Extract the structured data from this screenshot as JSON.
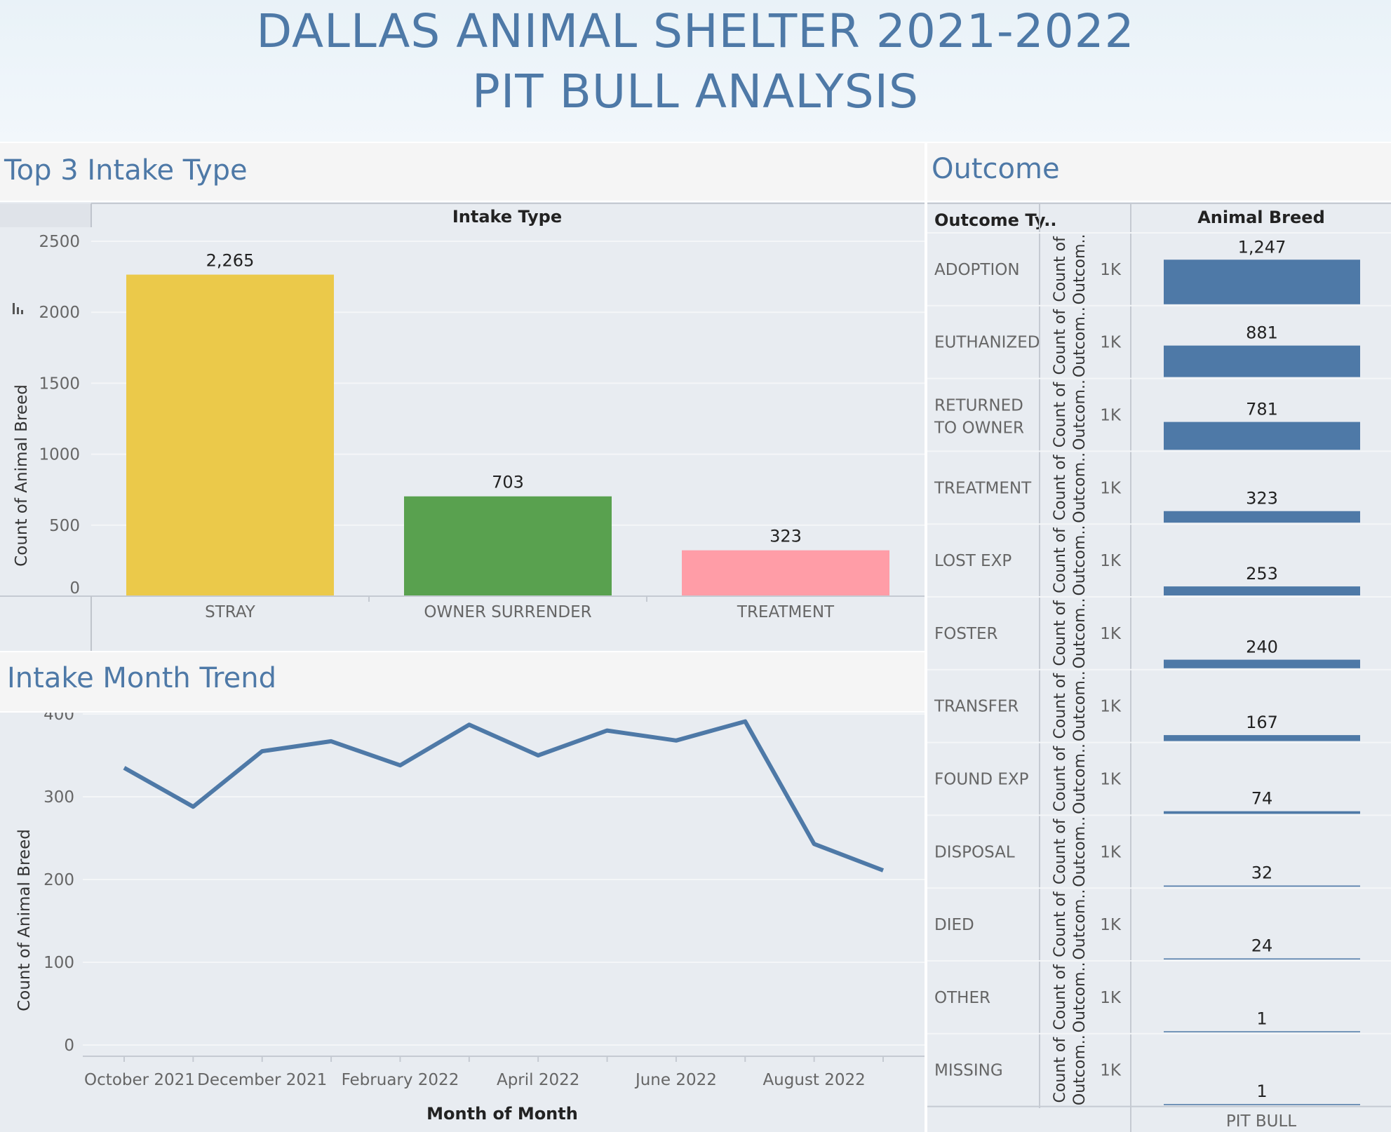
{
  "header": {
    "title_line1": "DALLAS ANIMAL SHELTER 2021-2022",
    "title_line2": "PIT BULL  ANALYSIS"
  },
  "colors": {
    "title_blue": "#4e79a7",
    "stray": "#ebc94a",
    "owner_surrender": "#59a14f",
    "treatment": "#ff9da7",
    "outcome_bar": "#4e79a7",
    "panel_bg": "#e8ecf1"
  },
  "intake_panel": {
    "title": "Top 3 Intake Type",
    "header": "Intake Type"
  },
  "trend_panel": {
    "title": "Intake Month Trend"
  },
  "outcome_panel": {
    "title": "Outcome",
    "col_header_type": "Outcome Ty..",
    "col_header_breed": "Animal Breed",
    "row_axis_label_line1": "Count of",
    "row_axis_label_line2": "Outcom..",
    "row_axis_tick": "1K",
    "breed_label": "PIT BULL"
  },
  "chart_data": [
    {
      "type": "bar",
      "title": "Top 3 Intake Type",
      "xlabel": "Intake Type",
      "ylabel": "Count of Animal Breed",
      "categories": [
        "STRAY",
        "OWNER SURRENDER",
        "TREATMENT"
      ],
      "values": [
        2265,
        703,
        323
      ],
      "value_labels": [
        "2,265",
        "703",
        "323"
      ],
      "yticks": [
        "2500",
        "2000",
        "1500",
        "1000",
        "500",
        "0"
      ],
      "ylim": [
        0,
        2500
      ],
      "grid": true
    },
    {
      "type": "line",
      "title": "Intake Month Trend",
      "xlabel": "Month of Month",
      "ylabel": "Count of Animal Breed",
      "x": [
        "2021-10",
        "2021-11",
        "2021-12",
        "2022-01",
        "2022-02",
        "2022-03",
        "2022-04",
        "2022-05",
        "2022-06",
        "2022-07",
        "2022-08",
        "2022-09"
      ],
      "values": [
        335,
        288,
        355,
        367,
        338,
        387,
        350,
        380,
        368,
        391,
        243,
        211
      ],
      "xtick_labels": [
        "October 2021",
        "December 2021",
        "February 2022",
        "April 2022",
        "June 2022",
        "August 2022"
      ],
      "yticks": [
        "400",
        "300",
        "200",
        "100",
        "0"
      ],
      "ylim": [
        0,
        420
      ],
      "grid": true
    },
    {
      "type": "bar",
      "title": "Outcome",
      "orientation": "vertical-small-multiples",
      "categories": [
        "ADOPTION",
        "EUTHANIZED",
        "RETURNED TO OWNER",
        "TREATMENT",
        "LOST EXP",
        "FOSTER",
        "TRANSFER",
        "FOUND EXP",
        "DISPOSAL",
        "DIED",
        "OTHER",
        "MISSING"
      ],
      "values": [
        1247,
        881,
        781,
        323,
        253,
        240,
        167,
        74,
        32,
        24,
        1,
        1
      ],
      "value_labels": [
        "1,247",
        "881",
        "781",
        "323",
        "253",
        "240",
        "167",
        "74",
        "32",
        "24",
        "1",
        "1"
      ],
      "series_name": "PIT BULL",
      "ylim": [
        0,
        1300
      ]
    }
  ]
}
